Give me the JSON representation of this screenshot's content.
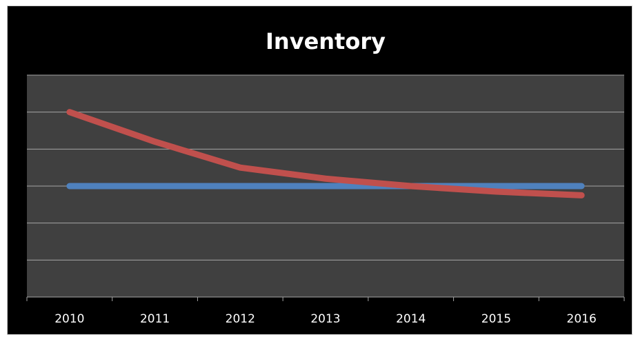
{
  "chart_data": {
    "type": "line",
    "title": "Inventory",
    "categories": [
      "2010",
      "2011",
      "2012",
      "2013",
      "2014",
      "2015",
      "2016"
    ],
    "series": [
      {
        "color": "#4f81bd",
        "values": [
          3,
          3,
          3,
          3,
          3,
          3,
          3
        ]
      },
      {
        "color": "#c0504d",
        "values": [
          5,
          4.2,
          3.5,
          3.2,
          3,
          2.85,
          2.75
        ]
      }
    ],
    "ylim": [
      0,
      6
    ],
    "yticks": [
      0,
      1,
      2,
      3,
      4,
      5,
      6
    ],
    "grid": true,
    "legend": "none",
    "colors": {
      "background": "#000000",
      "plot_area": "#404040",
      "gridline": "#a6a6a6",
      "text": "#ffffff"
    }
  }
}
